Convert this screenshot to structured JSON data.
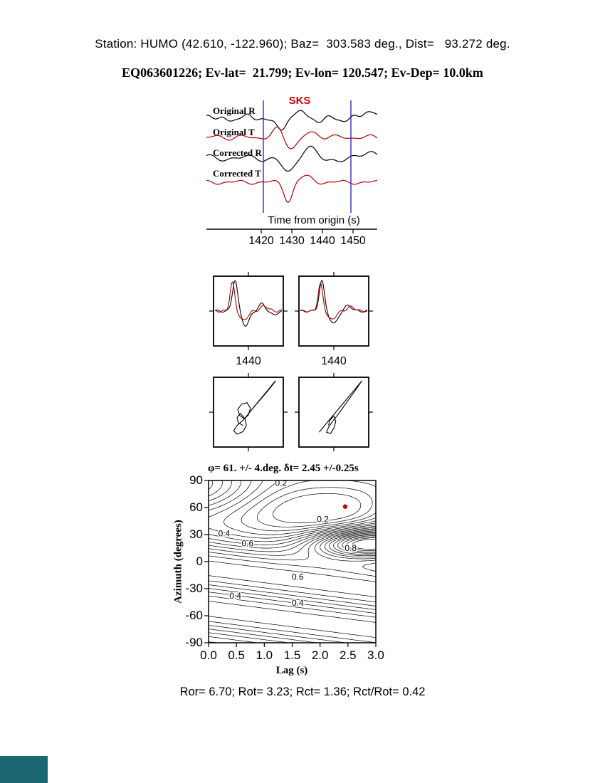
{
  "header": {
    "station_line": "Station: HUMO (42.610, -122.960); Baz=  303.583 deg., Dist=   93.272 deg.",
    "event_line": "EQ063601226; Ev-lat=  21.799; Ev-lon= 120.547; Ev-Dep= 10.0km",
    "station_info": {
      "station": "HUMO",
      "lat": 42.61,
      "lon": -122.96,
      "baz_deg": 303.583,
      "dist_deg": 93.272,
      "event_id": "EQ063601226",
      "ev_lat": 21.799,
      "ev_lon": 120.547,
      "ev_dep": "10.0km"
    }
  },
  "waveform_panel": {
    "phase_label": "SKS",
    "xlabel": "Time from origin (s)",
    "tick_labels": [
      "1420",
      "1430",
      "1440",
      "1450"
    ],
    "trace_labels": [
      "Original R",
      "Original T",
      "Corrected R",
      "Corrected T"
    ],
    "window_color": "#2233bb"
  },
  "aligned_panels": {
    "tick_labels": [
      "1440",
      "1440"
    ]
  },
  "result_line": "φ= 61. +/- 4.deg. δt= 2.45 +/-0.25s",
  "contour_panel": {
    "ylabel": "Azimuth (degrees)",
    "xlabel": "Lag (s)",
    "ytick_labels": [
      "90",
      "60",
      "30",
      "0",
      "-30",
      "-60",
      "-90"
    ],
    "xtick_labels": [
      "0.0",
      "0.5",
      "1.0",
      "1.5",
      "2.0",
      "2.5",
      "3.0"
    ],
    "best_marker_color": "#cc0000"
  },
  "footer_line": "Ror= 6.70; Rot= 3.23; Rct= 1.36; Rct/Rot= 0.42",
  "metrics": {
    "Ror": 6.7,
    "Rot": 3.23,
    "Rct": 1.36,
    "Rct_over_Rot": 0.42
  },
  "corner_box_color": "#1b6672",
  "chart_data": {
    "waveforms": {
      "type": "line",
      "x_range_s": [
        1402,
        1458
      ],
      "xticks_s": [
        1420,
        1430,
        1440,
        1450
      ],
      "analysis_window_s": [
        1420.7,
        1449.3
      ],
      "traces": [
        {
          "name": "Original R",
          "color": "#000000",
          "harmonics": [
            {
              "a": 3,
              "f": 4.5,
              "p": 1.0
            },
            {
              "a": 2,
              "f": 8,
              "p": 2.6
            },
            {
              "a": 1.2,
              "f": 13,
              "p": 0.4
            }
          ],
          "pulses": [
            {
              "A": -18,
              "t0": 0.45,
              "w": 0.045
            },
            {
              "A": 14,
              "t0": 0.55,
              "w": 0.05
            },
            {
              "A": -6,
              "t0": 0.65,
              "w": 0.05
            },
            {
              "A": 8,
              "t0": 0.97,
              "w": 0.06
            }
          ]
        },
        {
          "name": "Original T",
          "color": "#aa0000",
          "harmonics": [
            {
              "a": 2.5,
              "f": 5.5,
              "p": 0.2
            },
            {
              "a": 1.5,
              "f": 9,
              "p": 3.4
            }
          ],
          "pulses": [
            {
              "A": 12,
              "t0": 0.42,
              "w": 0.04
            },
            {
              "A": -14,
              "t0": 0.5,
              "w": 0.05
            },
            {
              "A": 6,
              "t0": 0.62,
              "w": 0.06
            }
          ]
        },
        {
          "name": "Corrected R",
          "color": "#000000",
          "harmonics": [
            {
              "a": 3,
              "f": 4.5,
              "p": 1.4
            },
            {
              "a": 2,
              "f": 8.5,
              "p": 0.2
            }
          ],
          "pulses": [
            {
              "A": -22,
              "t0": 0.48,
              "w": 0.05
            },
            {
              "A": 16,
              "t0": 0.6,
              "w": 0.06
            },
            {
              "A": -6,
              "t0": 0.7,
              "w": 0.05
            },
            {
              "A": 9,
              "t0": 0.98,
              "w": 0.06
            }
          ]
        },
        {
          "name": "Corrected T",
          "color": "#aa0000",
          "harmonics": [
            {
              "a": 2,
              "f": 5,
              "p": 2.2
            },
            {
              "a": 1.2,
              "f": 10,
              "p": 0.9
            }
          ],
          "pulses": [
            {
              "A": -26,
              "t0": 0.48,
              "w": 0.035
            },
            {
              "A": 8,
              "t0": 0.58,
              "w": 0.05
            }
          ]
        }
      ]
    },
    "aligned": {
      "type": "line",
      "xtick_s": 1440,
      "panels": [
        {
          "traces": [
            {
              "color": "#000000",
              "harmonics": [
                {
                  "a": 1.5,
                  "f": 6,
                  "p": 0.5
                }
              ],
              "pulses": [
                {
                  "A": 44,
                  "t0": 0.3,
                  "w": 0.055
                },
                {
                  "A": -20,
                  "t0": 0.46,
                  "w": 0.08
                },
                {
                  "A": 10,
                  "t0": 0.7,
                  "w": 0.07
                },
                {
                  "A": -6,
                  "t0": 0.88,
                  "w": 0.06
                }
              ]
            },
            {
              "color": "#aa0000",
              "harmonics": [
                {
                  "a": 1.5,
                  "f": 7,
                  "p": 2.0
                }
              ],
              "pulses": [
                {
                  "A": 40,
                  "t0": 0.26,
                  "w": 0.05
                },
                {
                  "A": -13,
                  "t0": 0.43,
                  "w": 0.08
                },
                {
                  "A": 7,
                  "t0": 0.74,
                  "w": 0.08
                }
              ]
            }
          ]
        },
        {
          "traces": [
            {
              "color": "#000000",
              "harmonics": [
                {
                  "a": 1.5,
                  "f": 6,
                  "p": 1.2
                }
              ],
              "pulses": [
                {
                  "A": 42,
                  "t0": 0.32,
                  "w": 0.055
                },
                {
                  "A": -18,
                  "t0": 0.5,
                  "w": 0.08
                },
                {
                  "A": 8,
                  "t0": 0.72,
                  "w": 0.07
                }
              ]
            },
            {
              "color": "#aa0000",
              "harmonics": [
                {
                  "a": 1.2,
                  "f": 7,
                  "p": 0.3
                }
              ],
              "pulses": [
                {
                  "A": 38,
                  "t0": 0.3,
                  "w": 0.05
                },
                {
                  "A": -12,
                  "t0": 0.47,
                  "w": 0.08
                },
                {
                  "A": 6,
                  "t0": 0.76,
                  "w": 0.08
                }
              ]
            }
          ]
        }
      ]
    },
    "particle_motion": {
      "type": "line",
      "panels": [
        [
          [
            0.52,
            0.5
          ],
          [
            0.6,
            0.4
          ],
          [
            0.7,
            0.28
          ],
          [
            0.8,
            0.16
          ],
          [
            0.88,
            0.06
          ],
          [
            0.91,
            0.03
          ],
          [
            0.84,
            0.12
          ],
          [
            0.74,
            0.24
          ],
          [
            0.62,
            0.38
          ],
          [
            0.52,
            0.5
          ],
          [
            0.44,
            0.6
          ],
          [
            0.37,
            0.55
          ],
          [
            0.34,
            0.46
          ],
          [
            0.4,
            0.38
          ],
          [
            0.48,
            0.36
          ],
          [
            0.53,
            0.44
          ],
          [
            0.5,
            0.54
          ],
          [
            0.42,
            0.62
          ],
          [
            0.33,
            0.7
          ],
          [
            0.28,
            0.78
          ],
          [
            0.33,
            0.83
          ],
          [
            0.42,
            0.79
          ],
          [
            0.47,
            0.7
          ],
          [
            0.45,
            0.6
          ],
          [
            0.38,
            0.52
          ],
          [
            0.33,
            0.58
          ],
          [
            0.35,
            0.66
          ],
          [
            0.42,
            0.7
          ]
        ],
        [
          [
            0.28,
            0.8
          ],
          [
            0.38,
            0.68
          ],
          [
            0.48,
            0.56
          ],
          [
            0.58,
            0.44
          ],
          [
            0.68,
            0.32
          ],
          [
            0.78,
            0.2
          ],
          [
            0.88,
            0.08
          ],
          [
            0.92,
            0.03
          ],
          [
            0.86,
            0.12
          ],
          [
            0.76,
            0.26
          ],
          [
            0.66,
            0.4
          ],
          [
            0.56,
            0.54
          ],
          [
            0.48,
            0.64
          ],
          [
            0.42,
            0.73
          ],
          [
            0.39,
            0.8
          ],
          [
            0.45,
            0.82
          ],
          [
            0.5,
            0.74
          ],
          [
            0.53,
            0.64
          ],
          [
            0.5,
            0.56
          ],
          [
            0.44,
            0.62
          ],
          [
            0.42,
            0.7
          ]
        ]
      ]
    },
    "error_surface": {
      "type": "contour",
      "xlabel": "Lag (s)",
      "ylabel": "Azimuth (degrees)",
      "x_range": [
        0,
        3
      ],
      "y_range": [
        -90,
        90
      ],
      "levels": {
        "min": 0.05,
        "step": 0.05,
        "max": 1.0
      },
      "best": {
        "lag_s": 2.45,
        "lag_err_s": 0.25,
        "azimuth_deg": 61,
        "azimuth_err_deg": 4
      },
      "labels": [
        {
          "v": "0.2",
          "lag": 1.3,
          "az": 84
        },
        {
          "v": "0.2",
          "lag": 2.05,
          "az": 44
        },
        {
          "v": "0.4",
          "lag": 0.28,
          "az": 28
        },
        {
          "v": "0.6",
          "lag": 0.7,
          "az": 17
        },
        {
          "v": "0.8",
          "lag": 2.55,
          "az": 12
        },
        {
          "v": "0.6",
          "lag": 1.6,
          "az": -20
        },
        {
          "v": "0.4",
          "lag": 0.48,
          "az": -41
        },
        {
          "v": "0.4",
          "lag": 1.6,
          "az": -49
        }
      ],
      "field": {
        "base": 0.5,
        "stripes": {
          "amp": 0.18,
          "phase": 0.5,
          "xslope": 0.55
        },
        "lows": [
          {
            "x": 2.45,
            "sx": 1.5,
            "a": 61,
            "sa": 30,
            "amp": 0.62
          },
          {
            "x": 1.0,
            "sx": 1.2,
            "a": 75,
            "sa": 35,
            "amp": 0.3
          }
        ],
        "highs": [
          {
            "x": 2.9,
            "sx": 1.05,
            "a": 20,
            "sa": 16,
            "amp": 0.85
          }
        ]
      }
    }
  }
}
